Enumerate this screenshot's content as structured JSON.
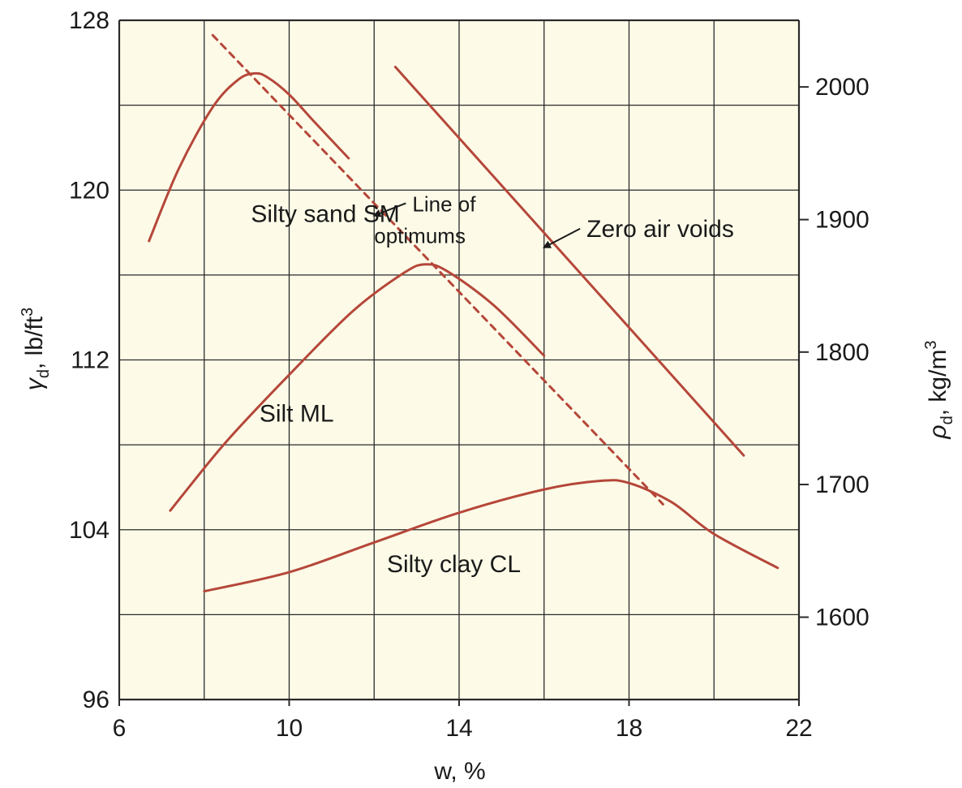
{
  "chart_data": {
    "type": "line",
    "xlabel": "w, %",
    "ylabel_left": {
      "symbol": "γ",
      "sub": "d",
      "text": ", lb/ft",
      "sup": "3"
    },
    "ylabel_right": {
      "symbol": "ρ",
      "sub": "d",
      "text": ", kg/m",
      "sup": "3"
    },
    "xlim": [
      6,
      22
    ],
    "ylim": [
      96,
      128
    ],
    "xticks": [
      "6",
      "10",
      "14",
      "18",
      "22"
    ],
    "yticks_left": [
      "96",
      "104",
      "112",
      "120",
      "128"
    ],
    "yticks_right": [
      "1600",
      "1700",
      "1800",
      "1900",
      "2000"
    ],
    "yticks_right_values_lbft3": [
      99.88,
      106.13,
      112.37,
      118.61,
      124.86
    ],
    "grid": true,
    "colors": {
      "curve": "#b5473a",
      "background": "#fdfbe8",
      "grid": "#2a2a2a"
    },
    "series": [
      {
        "name": "Silty sand SM",
        "style": "solid",
        "x": [
          6.7,
          7.4,
          8.2,
          8.8,
          9.2,
          9.5,
          10.0,
          10.6,
          11.4
        ],
        "y": [
          117.6,
          121.0,
          123.9,
          125.2,
          125.5,
          125.3,
          124.5,
          123.2,
          121.5
        ]
      },
      {
        "name": "Silt ML",
        "style": "solid",
        "x": [
          7.2,
          8.5,
          10.0,
          11.5,
          12.7,
          13.2,
          13.7,
          14.8,
          16.0
        ],
        "y": [
          104.9,
          108.1,
          111.3,
          114.3,
          116.1,
          116.5,
          116.2,
          114.6,
          112.2
        ]
      },
      {
        "name": "Silty clay CL",
        "style": "solid",
        "x": [
          8.0,
          10.0,
          12.0,
          14.0,
          16.0,
          17.3,
          18.0,
          19.0,
          20.0,
          21.5
        ],
        "y": [
          101.1,
          102.0,
          103.4,
          104.8,
          105.9,
          106.3,
          106.2,
          105.3,
          103.8,
          102.2
        ]
      },
      {
        "name": "Zero air voids",
        "style": "solid",
        "x": [
          12.5,
          20.7
        ],
        "y": [
          125.8,
          107.5
        ]
      },
      {
        "name": "Line of optimums",
        "style": "dashed",
        "x": [
          8.2,
          18.8
        ],
        "y": [
          127.3,
          105.2
        ]
      }
    ],
    "annotations": [
      {
        "text": "Silty sand SM",
        "x": 9.1,
        "y": 118.5,
        "size": "normal",
        "arrow": false
      },
      {
        "text": "Line of",
        "x": 12.9,
        "y": 119.0,
        "size": "small",
        "arrow": true,
        "arrow_to_x": 12.0,
        "arrow_to_y": 118.8
      },
      {
        "text": "optimums",
        "x": 12.0,
        "y": 117.5,
        "size": "small",
        "arrow": false
      },
      {
        "text": "Zero air voids",
        "x": 17.0,
        "y": 117.8,
        "size": "normal",
        "arrow": true,
        "arrow_to_x": 16.0,
        "arrow_to_y": 117.3
      },
      {
        "text": "Silt ML",
        "x": 9.3,
        "y": 109.1,
        "size": "normal",
        "arrow": false
      },
      {
        "text": "Silty clay CL",
        "x": 12.3,
        "y": 102.0,
        "size": "normal",
        "arrow": false
      }
    ]
  }
}
